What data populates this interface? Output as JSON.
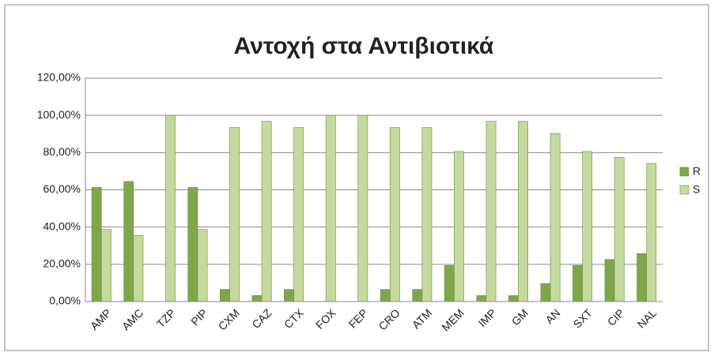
{
  "chart_data": {
    "type": "bar",
    "title": "Αντοχή στα Αντιβιοτικά",
    "categories": [
      "AMP",
      "AMC",
      "TZP",
      "PIP",
      "CXM",
      "CAZ",
      "CTX",
      "FOX",
      "FEP",
      "CRO",
      "ATM",
      "MEM",
      "IMP",
      "GM",
      "AN",
      "SXT",
      "CIP",
      "NAL"
    ],
    "series": [
      {
        "name": "R",
        "color": "#7fa64a",
        "values": [
          61.3,
          64.5,
          0,
          61.3,
          6.5,
          3.2,
          6.5,
          0,
          0,
          6.5,
          6.5,
          19.4,
          3.2,
          3.2,
          9.7,
          19.4,
          22.6,
          25.8
        ]
      },
      {
        "name": "S",
        "color": "#c4d99c",
        "values": [
          38.7,
          35.5,
          100,
          38.7,
          93.5,
          96.8,
          93.5,
          100,
          100,
          93.5,
          93.5,
          80.6,
          96.8,
          96.8,
          90.3,
          80.6,
          77.4,
          74.2
        ]
      }
    ],
    "ylim": [
      0,
      120
    ],
    "yticks": [
      {
        "value": 0,
        "label": "0,00%"
      },
      {
        "value": 20,
        "label": "20,00%"
      },
      {
        "value": 40,
        "label": "40,00%"
      },
      {
        "value": 60,
        "label": "60,00%"
      },
      {
        "value": 80,
        "label": "80,00%"
      },
      {
        "value": 100,
        "label": "100,00%"
      },
      {
        "value": 120,
        "label": "120,00%"
      }
    ],
    "grid": true,
    "legend": "right"
  }
}
